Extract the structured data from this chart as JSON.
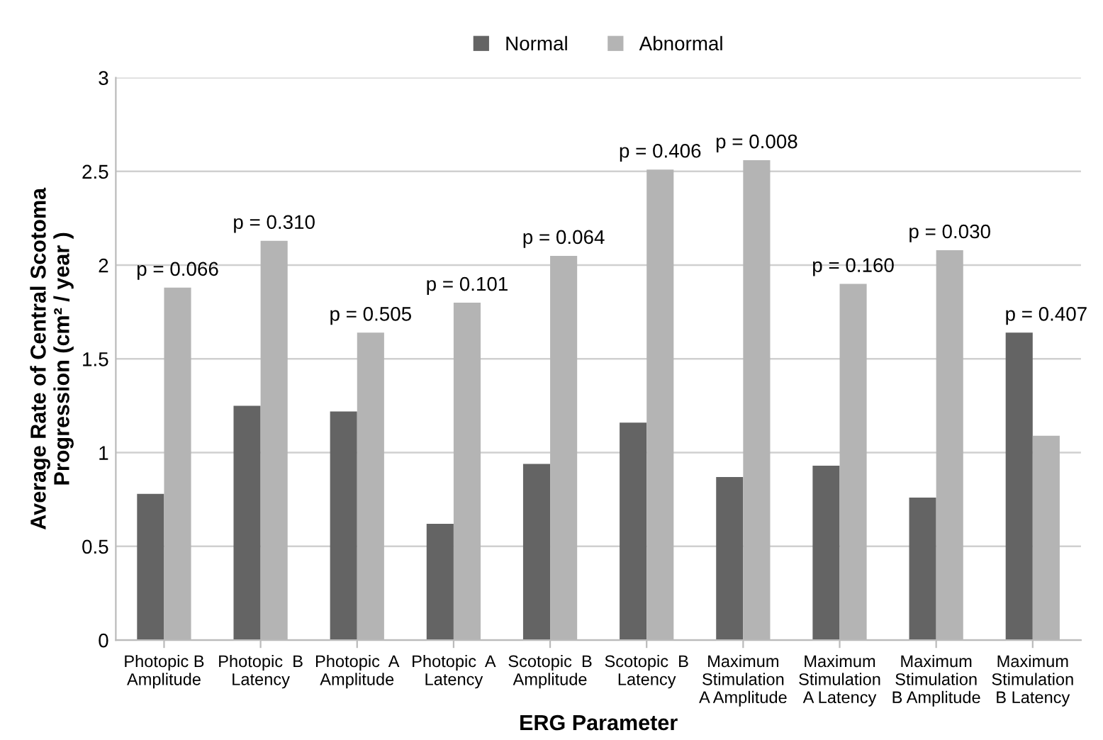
{
  "chart_data": {
    "type": "bar",
    "xlabel": "ERG Parameter",
    "ylabel": "Average Rate of Central Scotoma\nProgression (cm² / year )",
    "categories": [
      "Photopic B\nAmplitude",
      "Photopic  B\nLatency",
      "Photopic  A\nAmplitude",
      "Photopic  A\nLatency",
      "Scotopic  B\nAmplitude",
      "Scotopic  B\nLatency",
      "Maximum\nStimulation\nA Amplitude",
      "Maximum\nStimulation\nA Latency",
      "Maximum\nStimulation\nB Amplitude",
      "Maximum\nStimulation\nB Latency"
    ],
    "series": [
      {
        "name": "Normal",
        "color": "#646464",
        "values": [
          0.78,
          1.25,
          1.22,
          0.62,
          0.94,
          1.16,
          0.87,
          0.93,
          0.76,
          1.64
        ]
      },
      {
        "name": "Abnormal",
        "color": "#b4b4b4",
        "values": [
          1.88,
          2.13,
          1.64,
          1.8,
          2.05,
          2.51,
          2.56,
          1.9,
          2.08,
          1.09
        ]
      }
    ],
    "ylim": [
      0,
      3
    ],
    "yticks": [
      0,
      0.5,
      1,
      1.5,
      2,
      2.5,
      3
    ],
    "grid": "y",
    "legend": "top",
    "annotations": [
      {
        "text": "p = 0.066",
        "x": "Photopic B\nAmplitude",
        "y": 1.88
      },
      {
        "text": "p = 0.310",
        "x": "Photopic  B\nLatency",
        "y": 2.13
      },
      {
        "text": "p = 0.505",
        "x": "Photopic  A\nAmplitude",
        "y": 1.64
      },
      {
        "text": "p = 0.101",
        "x": "Photopic  A\nLatency",
        "y": 1.8
      },
      {
        "text": "p = 0.064",
        "x": "Scotopic  B\nAmplitude",
        "y": 2.05
      },
      {
        "text": "p = 0.406",
        "x": "Scotopic  B\nLatency",
        "y": 2.51
      },
      {
        "text": "p = 0.008",
        "x": "Maximum\nStimulation\nA Amplitude",
        "y": 2.56
      },
      {
        "text": "p = 0.160",
        "x": "Maximum\nStimulation\nA Latency",
        "y": 1.9
      },
      {
        "text": "p = 0.030",
        "x": "Maximum\nStimulation\nB Amplitude",
        "y": 2.08
      },
      {
        "text": "p = 0.407",
        "x": "Maximum\nStimulation\nB Latency",
        "y": 1.64
      }
    ]
  }
}
